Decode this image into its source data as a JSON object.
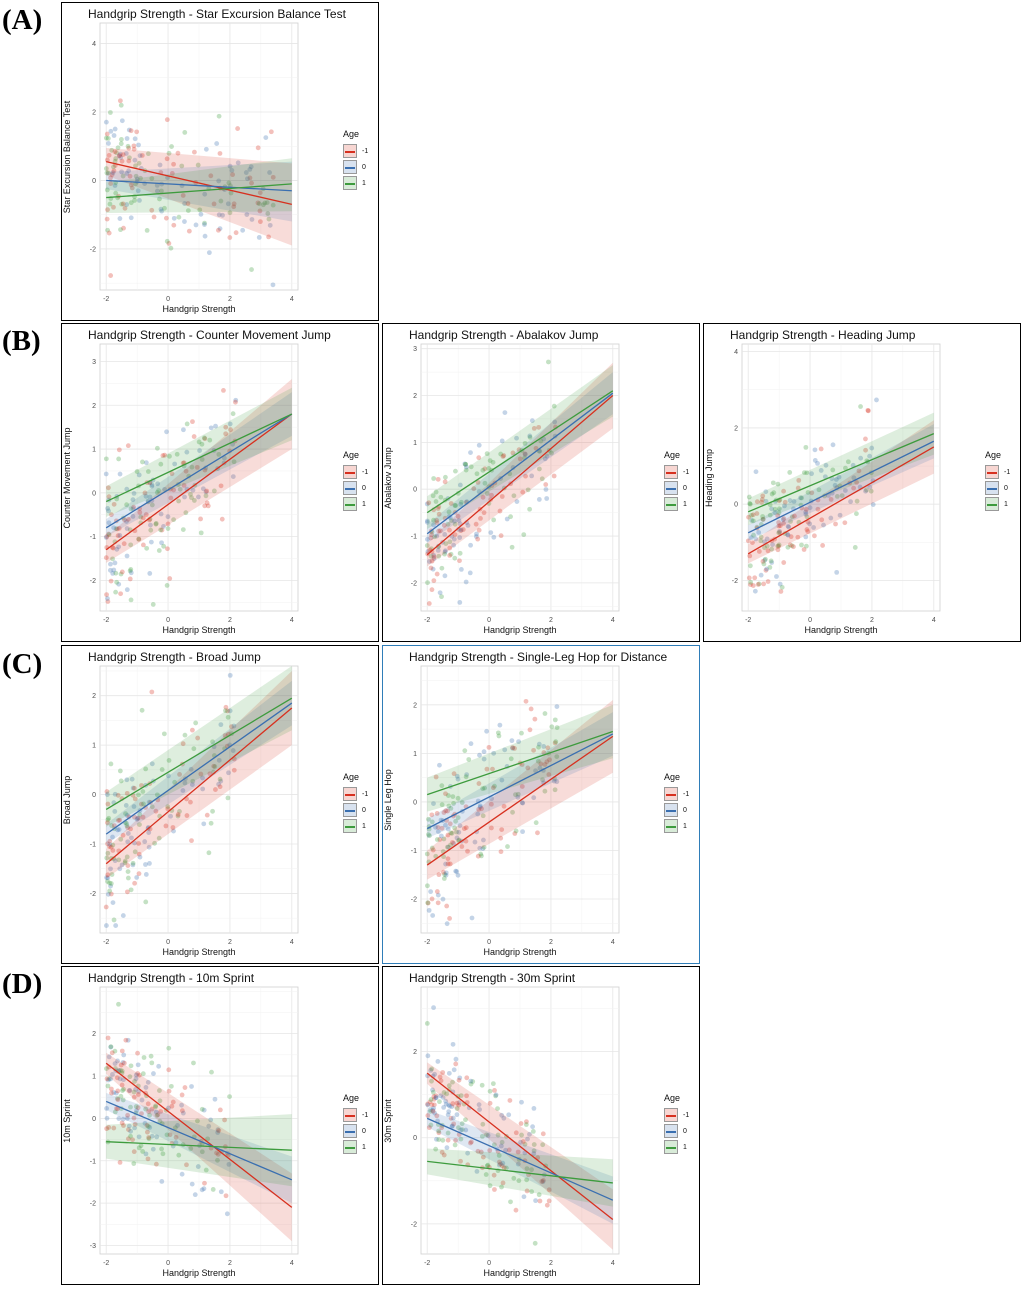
{
  "row_labels": [
    "(A)",
    "(B)",
    "(C)",
    "(D)"
  ],
  "legend": {
    "title": "Age",
    "levels": [
      {
        "label": "-1",
        "color": "#d7301f"
      },
      {
        "label": "0",
        "color": "#3a6fb0"
      },
      {
        "label": "1",
        "color": "#3d9b3d"
      }
    ]
  },
  "chart_data": [
    {
      "id": "sebt",
      "type": "scatter",
      "title": "Handgrip Strength - Star Excursion Balance Test",
      "xlabel": "Handgrip Strength",
      "ylabel": "Star Excursion Balance Test",
      "xlim": [
        -2.2,
        4.2
      ],
      "ylim": [
        -3.2,
        4.6
      ],
      "xticks": [
        -2,
        0,
        2,
        4
      ],
      "yticks": [
        -2,
        0,
        2,
        4
      ],
      "lines": [
        {
          "age": "-1",
          "x": [
            -2,
            4
          ],
          "y": [
            0.55,
            -0.7
          ],
          "ci_lo": [
            0.15,
            -1.9
          ],
          "ci_hi": [
            0.95,
            0.5
          ]
        },
        {
          "age": "0",
          "x": [
            -2,
            4
          ],
          "y": [
            0.0,
            -0.3
          ],
          "ci_lo": [
            -0.25,
            -1.2
          ],
          "ci_hi": [
            0.25,
            0.55
          ]
        },
        {
          "age": "1",
          "x": [
            -2,
            4
          ],
          "y": [
            -0.5,
            -0.1
          ],
          "ci_lo": [
            -0.95,
            -0.9
          ],
          "ci_hi": [
            -0.05,
            0.65
          ]
        }
      ],
      "cloud": {
        "slope": -0.2,
        "intercept": 0.0,
        "sd": 0.9,
        "xmin": -2.0,
        "xmax": 3.4
      }
    },
    {
      "id": "cmj",
      "type": "scatter",
      "title": "Handgrip Strength - Counter Movement Jump",
      "xlabel": "Handgrip Strength",
      "ylabel": "Counter Movement Jump",
      "xlim": [
        -2.2,
        4.2
      ],
      "ylim": [
        -2.7,
        3.4
      ],
      "xticks": [
        -2,
        0,
        2,
        4
      ],
      "yticks": [
        -2,
        -1,
        0,
        1,
        2,
        3
      ],
      "lines": [
        {
          "age": "-1",
          "x": [
            -2,
            4
          ],
          "y": [
            -1.3,
            1.8
          ],
          "ci_lo": [
            -1.6,
            1.0
          ],
          "ci_hi": [
            -1.0,
            2.6
          ]
        },
        {
          "age": "0",
          "x": [
            -2,
            4
          ],
          "y": [
            -0.8,
            1.8
          ],
          "ci_lo": [
            -1.0,
            1.3
          ],
          "ci_hi": [
            -0.6,
            2.3
          ]
        },
        {
          "age": "1",
          "x": [
            -2,
            4
          ],
          "y": [
            -0.2,
            1.8
          ],
          "ci_lo": [
            -0.55,
            1.2
          ],
          "ci_hi": [
            0.15,
            2.4
          ]
        }
      ],
      "cloud": {
        "slope": 0.55,
        "intercept": 0.0,
        "sd": 0.75,
        "xmin": -2.0,
        "xmax": 2.2
      }
    },
    {
      "id": "abalakov",
      "type": "scatter",
      "title": "Handgrip Strength - Abalakov Jump",
      "xlabel": "Handgrip Strength",
      "ylabel": "Abalakov Jump",
      "xlim": [
        -2.2,
        4.2
      ],
      "ylim": [
        -2.6,
        3.1
      ],
      "xticks": [
        -2,
        0,
        2,
        4
      ],
      "yticks": [
        -2,
        -1,
        0,
        1,
        2,
        3
      ],
      "lines": [
        {
          "age": "-1",
          "x": [
            -2,
            4
          ],
          "y": [
            -1.4,
            2.0
          ],
          "ci_lo": [
            -1.65,
            1.3
          ],
          "ci_hi": [
            -1.15,
            2.7
          ]
        },
        {
          "age": "0",
          "x": [
            -2,
            4
          ],
          "y": [
            -0.95,
            2.05
          ],
          "ci_lo": [
            -1.15,
            1.6
          ],
          "ci_hi": [
            -0.75,
            2.5
          ]
        },
        {
          "age": "1",
          "x": [
            -2,
            4
          ],
          "y": [
            -0.5,
            2.1
          ],
          "ci_lo": [
            -0.85,
            1.55
          ],
          "ci_hi": [
            -0.15,
            2.65
          ]
        }
      ],
      "cloud": {
        "slope": 0.6,
        "intercept": 0.0,
        "sd": 0.7,
        "xmin": -2.0,
        "xmax": 2.2
      }
    },
    {
      "id": "heading",
      "type": "scatter",
      "title": "Handgrip Strength - Heading Jump",
      "xlabel": "Handgrip Strength",
      "ylabel": "Heading Jump",
      "xlim": [
        -2.2,
        4.2
      ],
      "ylim": [
        -2.8,
        4.2
      ],
      "xticks": [
        -2,
        0,
        2,
        4
      ],
      "yticks": [
        -2,
        0,
        2,
        4
      ],
      "lines": [
        {
          "age": "-1",
          "x": [
            -2,
            4
          ],
          "y": [
            -1.3,
            1.5
          ],
          "ci_lo": [
            -1.55,
            0.8
          ],
          "ci_hi": [
            -1.05,
            2.2
          ]
        },
        {
          "age": "0",
          "x": [
            -2,
            4
          ],
          "y": [
            -0.75,
            1.65
          ],
          "ci_lo": [
            -0.95,
            1.2
          ],
          "ci_hi": [
            -0.55,
            2.1
          ]
        },
        {
          "age": "1",
          "x": [
            -2,
            4
          ],
          "y": [
            -0.2,
            1.85
          ],
          "ci_lo": [
            -0.55,
            1.3
          ],
          "ci_hi": [
            0.15,
            2.4
          ]
        }
      ],
      "cloud": {
        "slope": 0.5,
        "intercept": -0.1,
        "sd": 0.75,
        "xmin": -2.0,
        "xmax": 2.2
      }
    },
    {
      "id": "broad",
      "type": "scatter",
      "title": "Handgrip Strength - Broad Jump",
      "xlabel": "Handgrip Strength",
      "ylabel": "Broad Jump",
      "xlim": [
        -2.2,
        4.2
      ],
      "ylim": [
        -2.8,
        2.6
      ],
      "xticks": [
        -2,
        0,
        2,
        4
      ],
      "yticks": [
        -2,
        -1,
        0,
        1,
        2
      ],
      "lines": [
        {
          "age": "-1",
          "x": [
            -2,
            4
          ],
          "y": [
            -1.4,
            1.75
          ],
          "ci_lo": [
            -1.7,
            1.0
          ],
          "ci_hi": [
            -1.1,
            2.5
          ]
        },
        {
          "age": "0",
          "x": [
            -2,
            4
          ],
          "y": [
            -0.8,
            1.85
          ],
          "ci_lo": [
            -1.0,
            1.4
          ],
          "ci_hi": [
            -0.6,
            2.3
          ]
        },
        {
          "age": "1",
          "x": [
            -2,
            4
          ],
          "y": [
            -0.3,
            1.95
          ],
          "ci_lo": [
            -0.65,
            1.3
          ],
          "ci_hi": [
            0.05,
            2.6
          ]
        }
      ],
      "cloud": {
        "slope": 0.55,
        "intercept": 0.0,
        "sd": 0.7,
        "xmin": -2.0,
        "xmax": 2.2
      }
    },
    {
      "id": "hop",
      "type": "scatter",
      "title": "Handgrip Strength - Single-Leg Hop for Distance",
      "xlabel": "Handgrip Strength",
      "ylabel": "Single Leg Hop",
      "xlim": [
        -2.2,
        4.2
      ],
      "ylim": [
        -2.7,
        2.8
      ],
      "xticks": [
        -2,
        0,
        2,
        4
      ],
      "yticks": [
        -2,
        -1,
        0,
        1,
        2
      ],
      "lines": [
        {
          "age": "-1",
          "x": [
            -2,
            4
          ],
          "y": [
            -1.3,
            1.35
          ],
          "ci_lo": [
            -1.6,
            0.6
          ],
          "ci_hi": [
            -1.0,
            2.1
          ]
        },
        {
          "age": "0",
          "x": [
            -2,
            4
          ],
          "y": [
            -0.55,
            1.4
          ],
          "ci_lo": [
            -0.75,
            0.95
          ],
          "ci_hi": [
            -0.35,
            1.85
          ]
        },
        {
          "age": "1",
          "x": [
            -2,
            4
          ],
          "y": [
            0.15,
            1.45
          ],
          "ci_lo": [
            -0.2,
            0.9
          ],
          "ci_hi": [
            0.5,
            2.0
          ]
        }
      ],
      "cloud": {
        "slope": 0.55,
        "intercept": 0.0,
        "sd": 0.75,
        "xmin": -2.0,
        "xmax": 2.2
      }
    },
    {
      "id": "sprint10",
      "type": "scatter",
      "title": "Handgrip Strength - 10m Sprint",
      "xlabel": "Handgrip Strength",
      "ylabel": "10m Sprint",
      "xlim": [
        -2.2,
        4.2
      ],
      "ylim": [
        -3.2,
        3.1
      ],
      "xticks": [
        -2,
        0,
        2,
        4
      ],
      "yticks": [
        -3,
        -2,
        -1,
        0,
        1,
        2
      ],
      "lines": [
        {
          "age": "-1",
          "x": [
            -2,
            4
          ],
          "y": [
            1.3,
            -2.1
          ],
          "ci_lo": [
            1.05,
            -2.9
          ],
          "ci_hi": [
            1.55,
            -1.3
          ]
        },
        {
          "age": "0",
          "x": [
            -2,
            4
          ],
          "y": [
            0.4,
            -1.45
          ],
          "ci_lo": [
            0.2,
            -2.0
          ],
          "ci_hi": [
            0.6,
            -0.9
          ]
        },
        {
          "age": "1",
          "x": [
            -2,
            4
          ],
          "y": [
            -0.55,
            -0.75
          ],
          "ci_lo": [
            -0.95,
            -1.6
          ],
          "ci_hi": [
            -0.15,
            0.1
          ]
        }
      ],
      "cloud": {
        "slope": -0.45,
        "intercept": 0.0,
        "sd": 0.75,
        "xmin": -2.0,
        "xmax": 2.0
      }
    },
    {
      "id": "sprint30",
      "type": "scatter",
      "title": "Handgrip Strength - 30m Sprint",
      "xlabel": "Handgrip Strength",
      "ylabel": "30m Sprint",
      "xlim": [
        -2.2,
        4.2
      ],
      "ylim": [
        -2.7,
        3.5
      ],
      "xticks": [
        -2,
        0,
        2,
        4
      ],
      "yticks": [
        -2,
        0,
        2
      ],
      "lines": [
        {
          "age": "-1",
          "x": [
            -2,
            4
          ],
          "y": [
            1.5,
            -1.9
          ],
          "ci_lo": [
            1.25,
            -2.6
          ],
          "ci_hi": [
            1.75,
            -1.2
          ]
        },
        {
          "age": "0",
          "x": [
            -2,
            4
          ],
          "y": [
            0.45,
            -1.45
          ],
          "ci_lo": [
            0.25,
            -2.0
          ],
          "ci_hi": [
            0.65,
            -0.9
          ]
        },
        {
          "age": "1",
          "x": [
            -2,
            4
          ],
          "y": [
            -0.55,
            -1.05
          ],
          "ci_lo": [
            -0.85,
            -1.6
          ],
          "ci_hi": [
            -0.25,
            -0.5
          ]
        }
      ],
      "cloud": {
        "slope": -0.5,
        "intercept": 0.0,
        "sd": 0.7,
        "xmin": -2.0,
        "xmax": 2.0
      }
    }
  ]
}
